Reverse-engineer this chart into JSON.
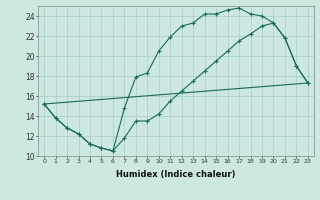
{
  "xlabel": "Humidex (Indice chaleur)",
  "bg_color": "#cce8e0",
  "grid_color": "#aacccc",
  "line_color": "#1a6b5a",
  "xlim": [
    -0.5,
    23.5
  ],
  "ylim": [
    10,
    25
  ],
  "xticks": [
    0,
    1,
    2,
    3,
    4,
    5,
    6,
    7,
    8,
    9,
    10,
    11,
    12,
    13,
    14,
    15,
    16,
    17,
    18,
    19,
    20,
    21,
    22,
    23
  ],
  "yticks": [
    10,
    12,
    14,
    16,
    18,
    20,
    22,
    24
  ],
  "line1_x": [
    0,
    1,
    2,
    3,
    4,
    5,
    6,
    7,
    8,
    9,
    10,
    11,
    12,
    13,
    14,
    15,
    16,
    17,
    18,
    19,
    20,
    21,
    22,
    23
  ],
  "line1_y": [
    15.2,
    13.8,
    12.8,
    12.2,
    11.2,
    10.8,
    10.5,
    14.8,
    17.9,
    18.3,
    20.5,
    21.9,
    23.0,
    23.3,
    24.2,
    24.2,
    24.6,
    24.8,
    24.2,
    24.0,
    23.3,
    21.8,
    19.0,
    17.3
  ],
  "line2_x": [
    0,
    1,
    2,
    3,
    4,
    5,
    6,
    7,
    8,
    9,
    10,
    11,
    12,
    13,
    14,
    15,
    16,
    17,
    18,
    19,
    20,
    21,
    22,
    23
  ],
  "line2_y": [
    15.2,
    13.8,
    12.8,
    12.2,
    11.2,
    10.8,
    10.5,
    11.8,
    13.5,
    13.5,
    14.2,
    15.5,
    16.5,
    17.5,
    18.5,
    19.5,
    20.5,
    21.5,
    22.2,
    23.0,
    23.3,
    21.8,
    19.0,
    17.3
  ],
  "line3_x": [
    0,
    23
  ],
  "line3_y": [
    15.2,
    17.3
  ]
}
